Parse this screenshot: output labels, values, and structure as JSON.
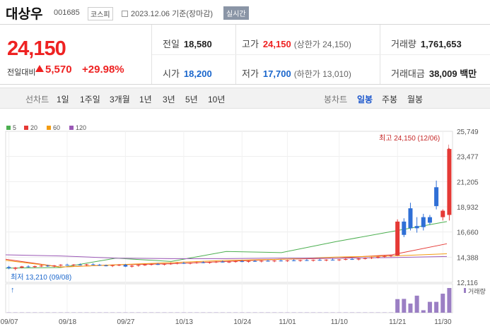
{
  "header": {
    "name": "대상우",
    "code": "001685",
    "market": "코스피",
    "date": "2023.12.06 기준(장마감)",
    "realtime": "실시간"
  },
  "quote": {
    "price": "24,150",
    "change_label": "전일대비",
    "change": "5,570",
    "change_pct": "+29.98%",
    "prev_close_label": "전일",
    "prev_close": "18,580",
    "high_label": "고가",
    "high": "24,150",
    "high_sub": "(상한가 24,150)",
    "volume_label": "거래량",
    "volume": "1,761,653",
    "open_label": "시가",
    "open": "18,200",
    "low_label": "저가",
    "low": "17,700",
    "low_sub": "(하한가 13,010)",
    "value_label": "거래대금",
    "value": "38,009 백만"
  },
  "toolbar": {
    "line_label": "선차트",
    "line_periods": [
      "1일",
      "1주일",
      "3개월",
      "1년",
      "3년",
      "5년",
      "10년"
    ],
    "candle_label": "봉차트",
    "candle_periods": [
      "일봉",
      "주봉",
      "월봉"
    ],
    "active_candle": "일봉"
  },
  "legend": [
    {
      "label": "5",
      "color": "#4caf50"
    },
    {
      "label": "20",
      "color": "#e53935"
    },
    {
      "label": "60",
      "color": "#f39c12"
    },
    {
      "label": "120",
      "color": "#9b59b6"
    }
  ],
  "annotations": {
    "high": "최고 24,150 (12/06)",
    "low": "최저 13,210 (09/08)",
    "volume_legend": "거래량"
  },
  "chart_data": {
    "type": "candlestick",
    "y_ticks": [
      "25,749",
      "23,477",
      "21,205",
      "18,932",
      "16,660",
      "14,388",
      "12,116"
    ],
    "ylim": [
      12116,
      25749
    ],
    "x_ticks": [
      "09/07",
      "09/18",
      "09/27",
      "10/13",
      "10/24",
      "11/01",
      "11/10",
      "11/21",
      "11/30"
    ],
    "candles": [
      [
        13500,
        13600,
        13300,
        13400
      ],
      [
        13350,
        13500,
        13210,
        13450
      ],
      [
        13450,
        13600,
        13380,
        13550
      ],
      [
        13550,
        13650,
        13450,
        13500
      ],
      [
        13500,
        13620,
        13420,
        13580
      ],
      [
        13580,
        13700,
        13500,
        13620
      ],
      [
        13620,
        13700,
        13520,
        13560
      ],
      [
        13560,
        13680,
        13480,
        13640
      ],
      [
        13640,
        13760,
        13560,
        13700
      ],
      [
        13700,
        13800,
        13620,
        13660
      ],
      [
        13660,
        13760,
        13580,
        13720
      ],
      [
        13720,
        13820,
        13640,
        13680
      ],
      [
        13680,
        13780,
        13600,
        13740
      ],
      [
        13740,
        13840,
        13660,
        13700
      ],
      [
        13700,
        13780,
        13600,
        13640
      ],
      [
        13640,
        13720,
        13560,
        13600
      ],
      [
        13600,
        13700,
        13500,
        13660
      ],
      [
        13660,
        13760,
        13580,
        13700
      ],
      [
        13700,
        13780,
        13500,
        13540
      ],
      [
        13540,
        13680,
        13460,
        13620
      ],
      [
        13620,
        13740,
        13540,
        13680
      ],
      [
        13680,
        13780,
        13600,
        13720
      ],
      [
        13720,
        13820,
        13640,
        13760
      ],
      [
        13760,
        13860,
        13680,
        13720
      ],
      [
        13720,
        13820,
        13640,
        13780
      ],
      [
        13780,
        13880,
        13700,
        13820
      ],
      [
        13820,
        13920,
        13740,
        13860
      ],
      [
        13860,
        13960,
        13780,
        13820
      ],
      [
        13820,
        13920,
        13740,
        13880
      ],
      [
        13880,
        13980,
        13800,
        13920
      ],
      [
        13920,
        14020,
        13840,
        13880
      ],
      [
        13880,
        13980,
        13800,
        13940
      ],
      [
        13940,
        14040,
        13860,
        13980
      ],
      [
        13980,
        14080,
        13900,
        13940
      ],
      [
        13940,
        14040,
        13860,
        13980
      ],
      [
        13980,
        14080,
        13900,
        14020
      ],
      [
        14020,
        14120,
        13940,
        13980
      ],
      [
        13980,
        14080,
        13900,
        14040
      ],
      [
        14040,
        14140,
        13960,
        14000
      ],
      [
        14000,
        14100,
        13920,
        14060
      ],
      [
        14060,
        14160,
        13980,
        14020
      ],
      [
        14020,
        14120,
        13940,
        14080
      ],
      [
        14080,
        14180,
        14000,
        14040
      ],
      [
        14040,
        14140,
        13960,
        14100
      ],
      [
        14100,
        14200,
        14020,
        14060
      ],
      [
        14060,
        14160,
        13980,
        14120
      ],
      [
        14120,
        14220,
        14040,
        14080
      ],
      [
        14080,
        14180,
        14000,
        14140
      ],
      [
        14140,
        14240,
        14060,
        14100
      ],
      [
        14100,
        14200,
        14020,
        14160
      ],
      [
        14160,
        14260,
        14080,
        14120
      ],
      [
        14120,
        14220,
        14040,
        14180
      ],
      [
        14180,
        14280,
        14100,
        14220
      ],
      [
        14220,
        14320,
        14140,
        14180
      ],
      [
        14180,
        14300,
        14100,
        14260
      ],
      [
        14260,
        14360,
        14180,
        14300
      ],
      [
        14300,
        14420,
        14220,
        14360
      ],
      [
        14360,
        14460,
        14280,
        14420
      ],
      [
        14420,
        14540,
        14340,
        14480
      ],
      [
        14480,
        14600,
        14400,
        14540
      ],
      [
        14540,
        17800,
        14500,
        17600
      ],
      [
        17600,
        17900,
        16200,
        16400
      ],
      [
        18800,
        19300,
        16800,
        17000
      ],
      [
        17200,
        18000,
        16600,
        17000
      ],
      [
        18000,
        18300,
        16800,
        17100
      ],
      [
        18000,
        18200,
        17300,
        17500
      ],
      [
        20700,
        21300,
        18700,
        19000
      ],
      [
        18000,
        18700,
        17700,
        18580
      ],
      [
        18200,
        24150,
        17700,
        24150
      ]
    ],
    "volume": [
      1,
      1,
      1,
      1,
      1,
      1,
      1,
      1,
      1,
      1,
      1,
      1,
      1,
      1,
      1,
      1,
      1,
      1,
      1,
      1,
      1,
      1,
      1,
      1,
      1,
      1,
      1,
      1,
      1,
      1,
      1,
      1,
      1,
      1,
      1,
      1,
      1,
      1,
      1,
      1,
      1,
      1,
      1,
      1,
      1,
      1,
      1,
      1,
      1,
      1,
      1,
      1,
      1,
      1,
      1,
      1,
      1,
      1,
      1,
      1,
      55,
      56,
      37,
      69,
      10,
      44,
      44,
      77,
      100
    ],
    "ma": {
      "5": [
        [
          13400,
          13450
        ],
        [
          14300,
          14000
        ],
        [
          14900,
          14800
        ],
        [
          15800,
          16700
        ],
        [
          17600,
          18000
        ]
      ],
      "20": [
        [
          14200,
          13500
        ],
        [
          13700,
          13800
        ],
        [
          14000,
          14200
        ],
        [
          14300,
          14600
        ],
        [
          15600,
          16000
        ]
      ],
      "60": [
        [
          14100,
          13500
        ],
        [
          13700,
          13900
        ],
        [
          14100,
          14200
        ],
        [
          14400,
          14500
        ],
        [
          14700,
          14800
        ]
      ],
      "120": [
        [
          14600,
          14500
        ],
        [
          14300,
          14250
        ],
        [
          14250,
          14300
        ],
        [
          14300,
          14350
        ],
        [
          14450,
          14450
        ]
      ]
    }
  }
}
